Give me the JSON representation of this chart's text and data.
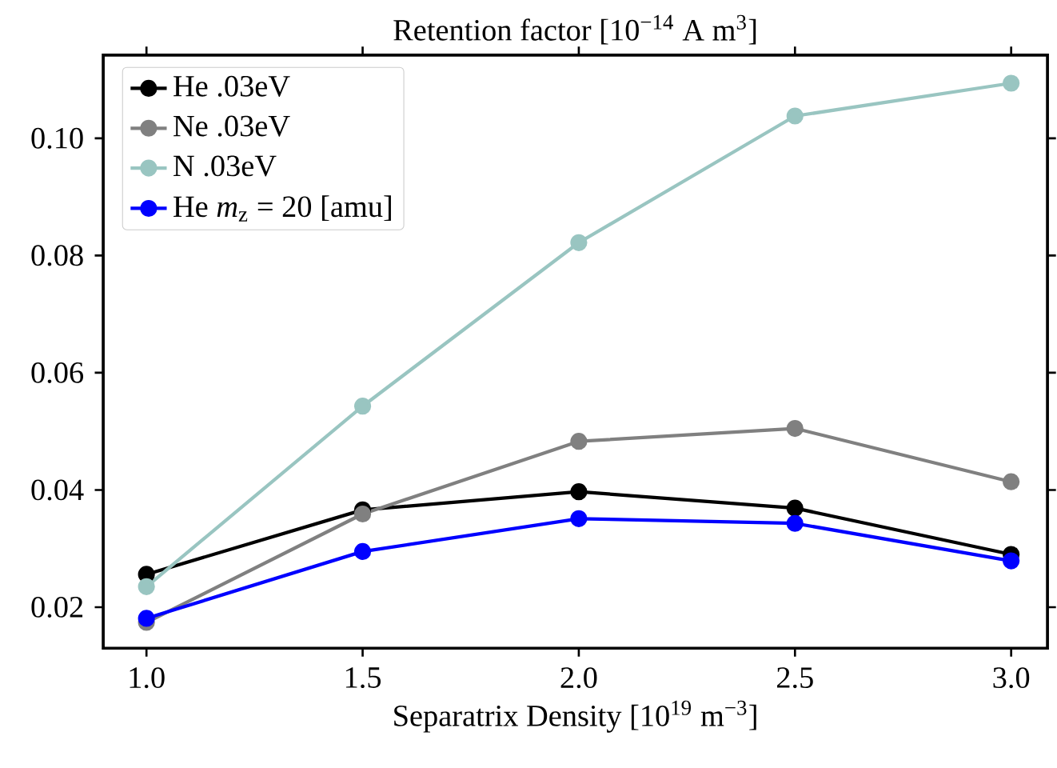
{
  "chart_data": {
    "type": "line",
    "title": "Retention factor [10$^{−14}$ A m$^{3}$]",
    "xlabel": "Separatrix Density [10$^{19}$ m$^{−3}$]",
    "x": [
      1.0,
      1.5,
      2.0,
      2.5,
      3.0
    ],
    "series": [
      {
        "name": "He .03eV",
        "color": "#000000",
        "values": [
          0.0256,
          0.0366,
          0.0397,
          0.0369,
          0.029
        ]
      },
      {
        "name": "Ne .03eV",
        "color": "#808080",
        "values": [
          0.0174,
          0.0359,
          0.0483,
          0.0505,
          0.0414
        ]
      },
      {
        "name": "N .03eV",
        "color": "#99c5c1",
        "values": [
          0.0235,
          0.0543,
          0.0822,
          0.1038,
          0.1094
        ]
      },
      {
        "name": "He *m*$_{z}$ = 20 [amu]",
        "color": "#0000ff",
        "values": [
          0.0181,
          0.0295,
          0.0351,
          0.0343,
          0.0279
        ]
      }
    ],
    "xlim": [
      0.9,
      3.084
    ],
    "ylim": [
      0.013,
      0.1142
    ],
    "xticks": [
      {
        "value": 1.0,
        "label": "1.0"
      },
      {
        "value": 1.5,
        "label": "1.5"
      },
      {
        "value": 2.0,
        "label": "2.0"
      },
      {
        "value": 2.5,
        "label": "2.5"
      },
      {
        "value": 3.0,
        "label": "3.0"
      }
    ],
    "yticks": [
      0.02,
      0.04,
      0.06,
      0.08,
      {
        "value": 0.1,
        "label": "0.10"
      }
    ],
    "legend": "top left",
    "marker": "circle",
    "line_style": "solid",
    "grid": false
  }
}
